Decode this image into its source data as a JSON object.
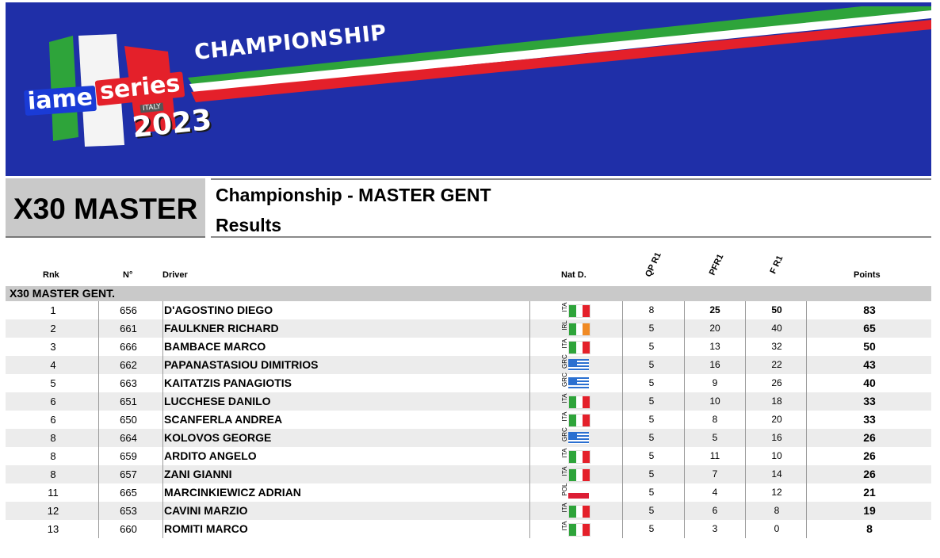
{
  "banner": {
    "title": "CHAMPIONSHIP",
    "logo": {
      "brand_a": "iame",
      "brand_b": "series",
      "country": "ITALY",
      "year": "2023"
    },
    "colors": {
      "background": "#1f2fa8",
      "green": "#2ea43a",
      "white": "#ffffff",
      "red": "#e4202a"
    }
  },
  "header": {
    "category": "X30 MASTER",
    "title": "Championship - MASTER GENT",
    "subtitle": "Results"
  },
  "columns": {
    "rank": "Rnk",
    "number": "N°",
    "driver": "Driver",
    "nat": "Nat D.",
    "qp": "QP R1",
    "pf": "PFR1",
    "f": "F R1",
    "points": "Points"
  },
  "group": "X30 MASTER GENT.",
  "rows": [
    {
      "rank": "1",
      "number": "656",
      "driver": "D'AGOSTINO DIEGO",
      "nat": "ITA",
      "qp": "8",
      "pf": "25",
      "f": "50",
      "points": "83",
      "pf_bold": true,
      "f_bold": true
    },
    {
      "rank": "2",
      "number": "661",
      "driver": "FAULKNER RICHARD",
      "nat": "IRL",
      "qp": "5",
      "pf": "20",
      "f": "40",
      "points": "65"
    },
    {
      "rank": "3",
      "number": "666",
      "driver": "BAMBACE MARCO",
      "nat": "ITA",
      "qp": "5",
      "pf": "13",
      "f": "32",
      "points": "50"
    },
    {
      "rank": "4",
      "number": "662",
      "driver": "PAPANASTASIOU DIMITRIOS",
      "nat": "GRC",
      "qp": "5",
      "pf": "16",
      "f": "22",
      "points": "43"
    },
    {
      "rank": "5",
      "number": "663",
      "driver": "KAITATZIS PANAGIOTIS",
      "nat": "GRC",
      "qp": "5",
      "pf": "9",
      "f": "26",
      "points": "40"
    },
    {
      "rank": "6",
      "number": "651",
      "driver": "LUCCHESE DANILO",
      "nat": "ITA",
      "qp": "5",
      "pf": "10",
      "f": "18",
      "points": "33"
    },
    {
      "rank": "6",
      "number": "650",
      "driver": "SCANFERLA ANDREA",
      "nat": "ITA",
      "qp": "5",
      "pf": "8",
      "f": "20",
      "points": "33"
    },
    {
      "rank": "8",
      "number": "664",
      "driver": "KOLOVOS GEORGE",
      "nat": "GRC",
      "qp": "5",
      "pf": "5",
      "f": "16",
      "points": "26"
    },
    {
      "rank": "8",
      "number": "659",
      "driver": "ARDITO ANGELO",
      "nat": "ITA",
      "qp": "5",
      "pf": "11",
      "f": "10",
      "points": "26"
    },
    {
      "rank": "8",
      "number": "657",
      "driver": "ZANI GIANNI",
      "nat": "ITA",
      "qp": "5",
      "pf": "7",
      "f": "14",
      "points": "26"
    },
    {
      "rank": "11",
      "number": "665",
      "driver": "MARCINKIEWICZ ADRIAN",
      "nat": "POL",
      "qp": "5",
      "pf": "4",
      "f": "12",
      "points": "21"
    },
    {
      "rank": "12",
      "number": "653",
      "driver": "CAVINI MARZIO",
      "nat": "ITA",
      "qp": "5",
      "pf": "6",
      "f": "8",
      "points": "19"
    },
    {
      "rank": "13",
      "number": "660",
      "driver": "ROMITI MARCO",
      "nat": "ITA",
      "qp": "5",
      "pf": "3",
      "f": "0",
      "points": "8"
    }
  ],
  "flag_colors": {
    "ITA": [
      "#2ea43a",
      "#ffffff",
      "#e4202a"
    ],
    "IRL": [
      "#2ea43a",
      "#ffffff",
      "#f08a24"
    ],
    "GRC": [
      "#2a6fd0",
      "#ffffff"
    ],
    "POL": [
      "#ffffff",
      "#dc1e35"
    ]
  }
}
